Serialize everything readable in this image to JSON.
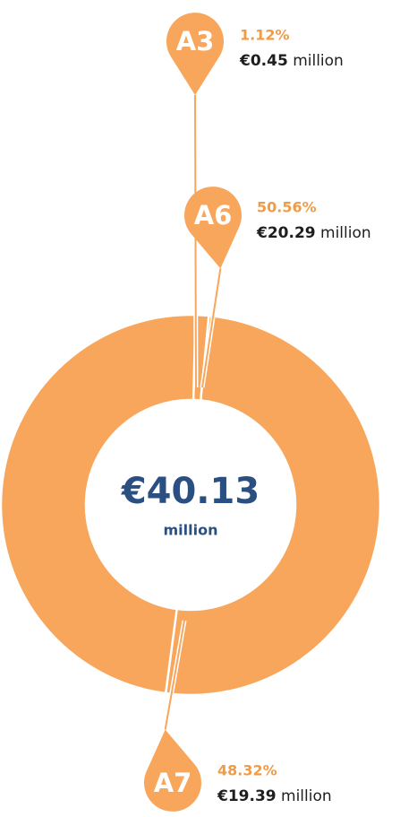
{
  "chart_data": {
    "type": "donut",
    "categories": [
      "A3",
      "A6",
      "A7"
    ],
    "values": [
      1.12,
      50.56,
      48.32
    ],
    "value_labels": [
      "1.12%",
      "50.56%",
      "48.32%"
    ],
    "amount_labels": [
      "€0.45",
      "€20.29",
      "€19.39"
    ],
    "unit": "million",
    "total_label": "€40.13",
    "color": "#f7a65b"
  }
}
